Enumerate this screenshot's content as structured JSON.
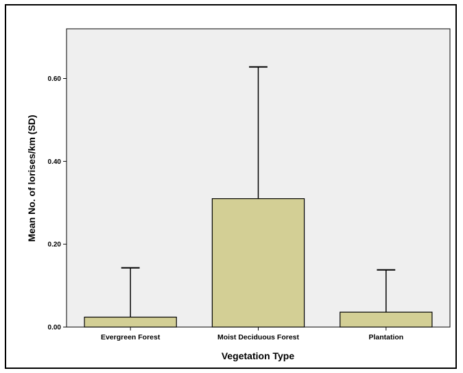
{
  "chart_data": {
    "type": "bar",
    "categories": [
      "Evergreen Forest",
      "Moist Deciduous Forest",
      "Plantation"
    ],
    "values": [
      0.024,
      0.31,
      0.036
    ],
    "error_upper": [
      0.143,
      0.628,
      0.138
    ],
    "xlabel": "Vegetation Type",
    "ylabel": "Mean No. of lorises/km (SD)",
    "ylim": [
      0,
      0.72
    ],
    "yticks": [
      0,
      0.2,
      0.4,
      0.6
    ],
    "ytick_labels": [
      "0.00",
      "0.20",
      "0.40",
      "0.60"
    ],
    "grid": false,
    "colors": {
      "bar_fill": "#d3cf95",
      "plot_background": "#efefef",
      "stroke": "#000000"
    }
  }
}
